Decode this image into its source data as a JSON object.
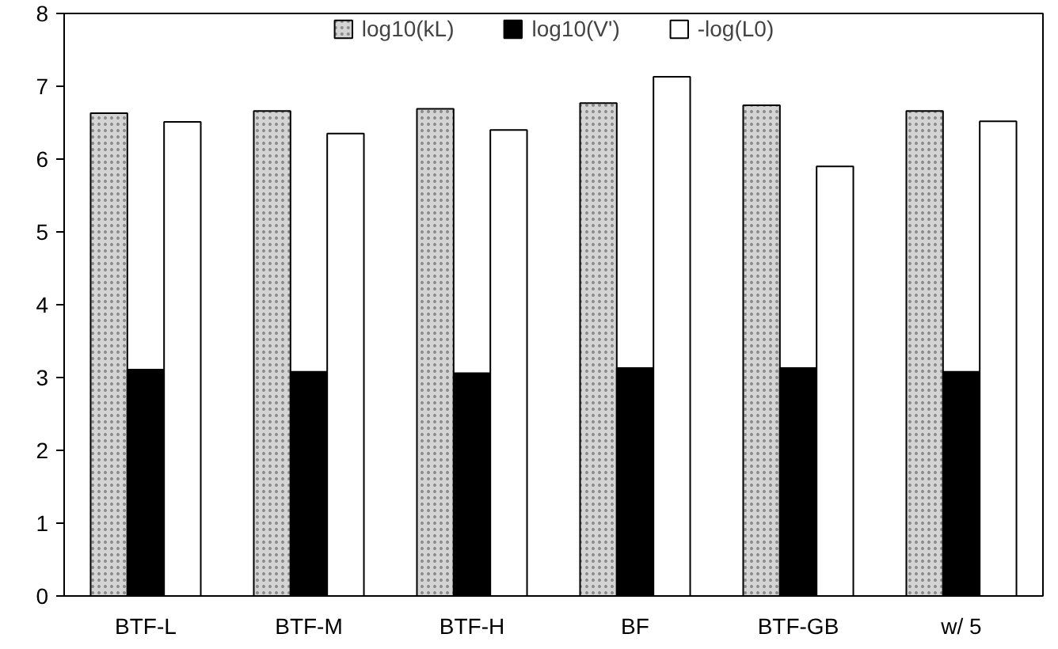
{
  "chart_data": {
    "type": "bar",
    "categories": [
      "BTF-L",
      "BTF-M",
      "BTF-H",
      "BF",
      "BTF-GB",
      "w/ 5"
    ],
    "series": [
      {
        "name": "log10(kL)",
        "color": "#d4d4d4",
        "values": [
          6.63,
          6.66,
          6.69,
          6.77,
          6.74,
          6.66
        ]
      },
      {
        "name": "log10(V')",
        "color": "#000000",
        "values": [
          3.11,
          3.08,
          3.06,
          3.13,
          3.13,
          3.08
        ]
      },
      {
        "name": "-log(L0)",
        "color": "#ffffff",
        "values": [
          6.51,
          6.35,
          6.4,
          7.13,
          5.9,
          6.52
        ]
      }
    ],
    "ylim": [
      0,
      8
    ],
    "yticks": [
      0,
      1,
      2,
      3,
      4,
      5,
      6,
      7,
      8
    ],
    "grid": false,
    "legend": "top"
  }
}
